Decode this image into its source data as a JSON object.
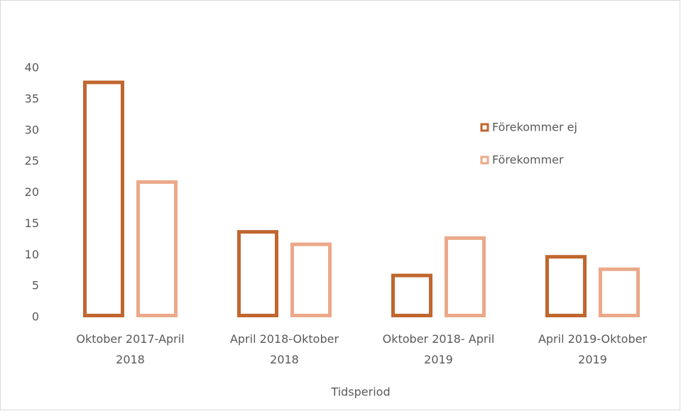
{
  "chart_data": {
    "type": "bar",
    "categories": [
      "Oktober 2017-April 2018",
      "April 2018-Oktober 2018",
      "Oktober 2018- April 2019",
      "April 2019-Oktober 2019"
    ],
    "series": [
      {
        "name": "Förekommer ej",
        "color": "#c0662e",
        "values": [
          38,
          14,
          7,
          10
        ]
      },
      {
        "name": "Förekommer",
        "color": "#eba98a",
        "values": [
          22,
          12,
          13,
          8
        ]
      }
    ],
    "ylim": [
      0,
      40
    ],
    "yticks": [
      0,
      5,
      10,
      15,
      20,
      25,
      30,
      35,
      40
    ],
    "x_label": "Tidsperiod",
    "grid": false,
    "legend": "right"
  }
}
